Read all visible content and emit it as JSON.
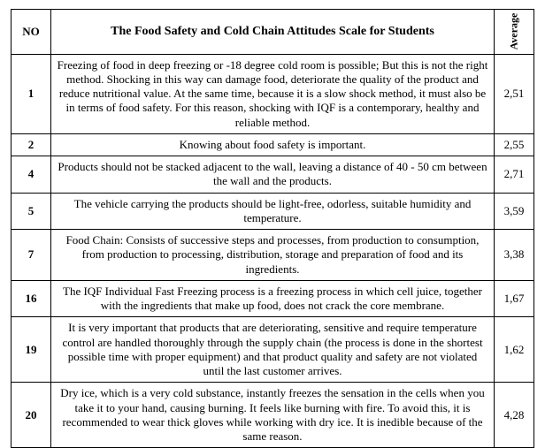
{
  "header": {
    "no_label": "NO",
    "title_label": "The Food Safety and Cold Chain Attitudes Scale for Students",
    "avg_label": "Average"
  },
  "rows": [
    {
      "no": "1",
      "desc": "Freezing of food in deep freezing or -18 degree cold room is possible; But this is not the right method. Shocking in this way can damage food, deteriorate the quality of the product and reduce nutritional value. At the same time, because it is a slow shock method, it must also be in terms of food safety. For this reason, shocking with IQF is a contemporary, healthy and reliable method.",
      "avg": "2,51"
    },
    {
      "no": "2",
      "desc": "Knowing about food safety is important.",
      "avg": "2,55"
    },
    {
      "no": "4",
      "desc": "Products should not be stacked adjacent to the wall, leaving a distance of 40 - 50 cm between the wall and the products.",
      "avg": "2,71"
    },
    {
      "no": "5",
      "desc": "The vehicle carrying the products should be light-free, odorless, suitable humidity and temperature.",
      "avg": "3,59"
    },
    {
      "no": "7",
      "desc": "Food Chain: Consists of successive steps and processes, from production to consumption, from production to processing, distribution, storage and preparation of food and its ingredients.",
      "avg": "3,38"
    },
    {
      "no": "16",
      "desc": "The IQF Individual Fast Freezing process is a freezing process in which cell juice, together with the ingredients that make up food, does not crack the core membrane.",
      "avg": "1,67"
    },
    {
      "no": "19",
      "desc": "It is very important that products that are deteriorating, sensitive and require temperature control are handled thoroughly through the supply chain (the process is done in the shortest possible time with proper equipment) and that product quality and safety are not violated until the last customer arrives.",
      "avg": "1,62"
    },
    {
      "no": "20",
      "desc": "Dry ice, which is a very cold substance, instantly freezes the sensation in the cells when you take it to your hand, causing burning. It feels like burning with fire. To avoid this, it is recommended to wear thick gloves while working with dry ice. It is inedible because of the same reason.",
      "avg": "4,28"
    }
  ]
}
